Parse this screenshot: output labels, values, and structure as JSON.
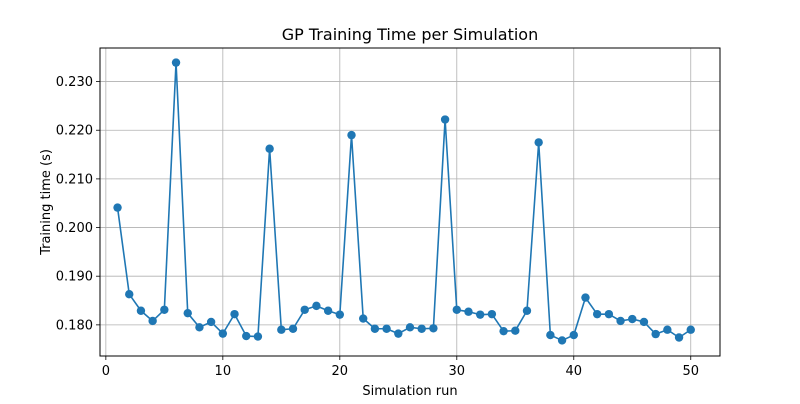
{
  "chart_data": {
    "type": "line",
    "title": "GP Training Time per Simulation",
    "xlabel": "Simulation run",
    "ylabel": "Training time (s)",
    "xlim": [
      -0.5,
      52.5
    ],
    "ylim": [
      0.1736,
      0.2369
    ],
    "xticks": [
      0,
      10,
      20,
      30,
      40,
      50
    ],
    "yticks": [
      0.18,
      0.19,
      0.2,
      0.21,
      0.22,
      0.23
    ],
    "xtick_labels": [
      "0",
      "10",
      "20",
      "30",
      "40",
      "50"
    ],
    "ytick_labels": [
      "0.180",
      "0.190",
      "0.200",
      "0.210",
      "0.220",
      "0.230"
    ],
    "grid": true,
    "marker": "circle",
    "color": "#1f77b4",
    "series": [
      {
        "x": [
          1,
          2,
          3,
          4,
          5,
          6,
          7,
          8,
          9,
          10,
          11,
          12,
          13,
          14,
          15,
          16,
          17,
          18,
          19,
          20,
          21,
          22,
          23,
          24,
          25,
          26,
          27,
          28,
          29,
          30,
          31,
          32,
          33,
          34,
          35,
          36,
          37,
          38,
          39,
          40,
          41,
          42,
          43,
          44,
          45,
          46,
          47,
          48,
          49,
          50
        ],
        "values": [
          0.2041,
          0.1863,
          0.1829,
          0.1808,
          0.1831,
          0.2339,
          0.1824,
          0.1795,
          0.1806,
          0.1782,
          0.1822,
          0.1777,
          0.1776,
          0.2162,
          0.179,
          0.1792,
          0.1831,
          0.1839,
          0.1829,
          0.1821,
          0.219,
          0.1813,
          0.1792,
          0.1792,
          0.1782,
          0.1795,
          0.1792,
          0.1793,
          0.2222,
          0.1831,
          0.1827,
          0.1821,
          0.1822,
          0.1787,
          0.1788,
          0.1829,
          0.2175,
          0.1779,
          0.1768,
          0.1779,
          0.1856,
          0.1822,
          0.1822,
          0.1808,
          0.1812,
          0.1806,
          0.1781,
          0.179,
          0.1774,
          0.179
        ]
      }
    ]
  }
}
